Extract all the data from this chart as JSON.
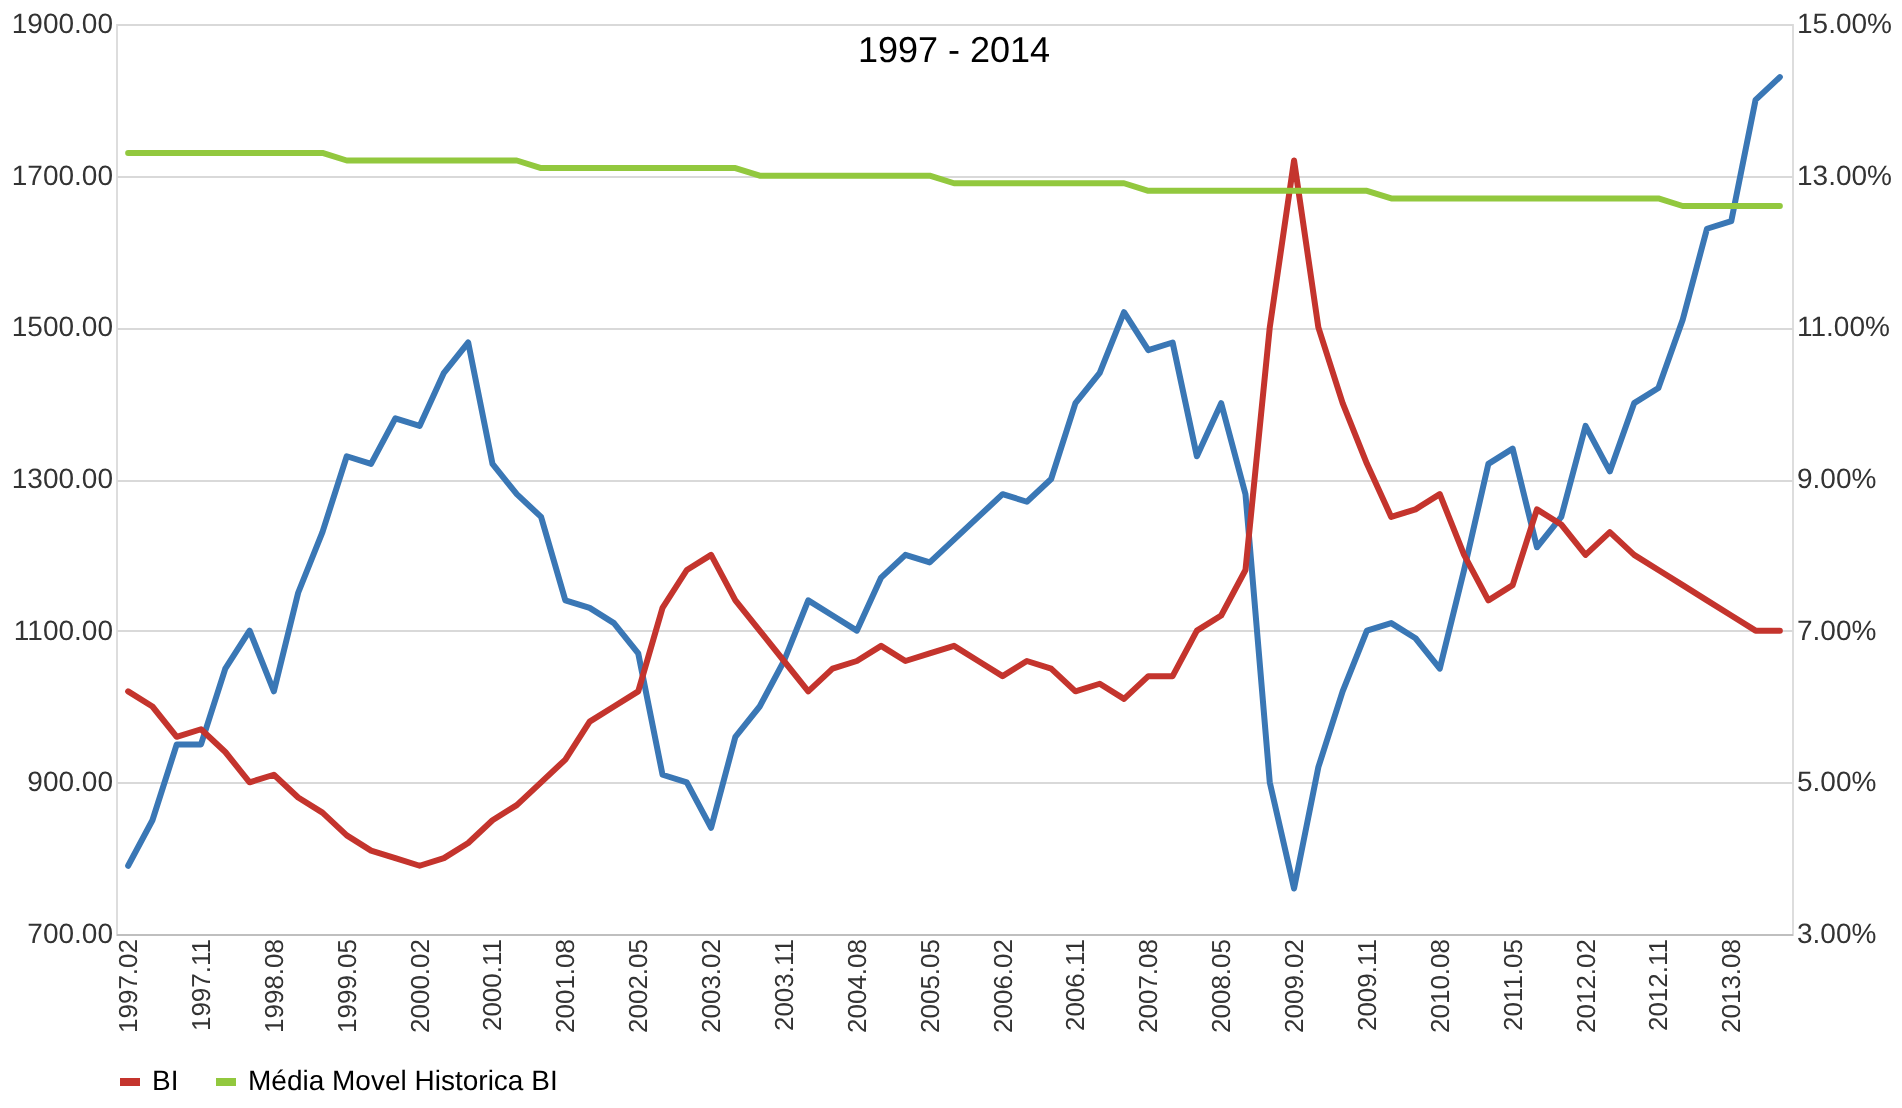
{
  "chart_data": {
    "type": "line",
    "title": "1997 - 2014",
    "categories": [
      "1997.02",
      null,
      null,
      "1997.11",
      null,
      null,
      "1998.08",
      null,
      null,
      "1999.05",
      null,
      null,
      "2000.02",
      null,
      null,
      "2000.11",
      null,
      null,
      "2001.08",
      null,
      null,
      "2002.05",
      null,
      null,
      "2003.02",
      null,
      null,
      "2003.11",
      null,
      null,
      "2004.08",
      null,
      null,
      "2005.05",
      null,
      null,
      "2006.02",
      null,
      null,
      "2006.11",
      null,
      null,
      "2007.08",
      null,
      null,
      "2008.05",
      null,
      null,
      "2009.02",
      null,
      null,
      "2009.11",
      null,
      null,
      "2010.08",
      null,
      null,
      "2011.05",
      null,
      null,
      "2012.02",
      null,
      null,
      "2012.11",
      null,
      null,
      "2013.08",
      null,
      null
    ],
    "series": [
      {
        "color": "#3a77b5",
        "values": [
          790,
          850,
          950,
          950,
          1050,
          1100,
          1020,
          1150,
          1230,
          1330,
          1320,
          1380,
          1370,
          1440,
          1480,
          1320,
          1280,
          1250,
          1140,
          1130,
          1110,
          1070,
          910,
          900,
          840,
          960,
          1000,
          1060,
          1140,
          1120,
          1100,
          1170,
          1200,
          1190,
          1220,
          1250,
          1280,
          1270,
          1300,
          1400,
          1440,
          1520,
          1470,
          1480,
          1330,
          1400,
          1280,
          900,
          760,
          920,
          1020,
          1100,
          1110,
          1090,
          1050,
          1180,
          1320,
          1340,
          1210,
          1250,
          1370,
          1310,
          1400,
          1420,
          1510,
          1630,
          1640,
          1800,
          1830
        ]
      },
      {
        "name": "BI",
        "color": "#c4342d",
        "axis": "y2",
        "values": [
          6.2,
          6.0,
          5.6,
          5.7,
          5.4,
          5.0,
          5.1,
          4.8,
          4.6,
          4.3,
          4.1,
          4.0,
          3.9,
          4.0,
          4.2,
          4.5,
          4.7,
          5.0,
          5.3,
          5.8,
          6.0,
          6.2,
          7.3,
          7.8,
          8.0,
          7.4,
          7.0,
          6.6,
          6.2,
          6.5,
          6.6,
          6.8,
          6.6,
          6.7,
          6.8,
          6.6,
          6.4,
          6.6,
          6.5,
          6.2,
          6.3,
          6.1,
          6.4,
          6.4,
          7.0,
          7.2,
          7.8,
          11.0,
          13.2,
          11.0,
          10.0,
          9.2,
          8.5,
          8.6,
          8.8,
          8.0,
          7.4,
          7.6,
          8.6,
          8.4,
          8.0,
          8.3,
          8.0,
          7.8,
          7.6,
          7.4,
          7.2,
          7.0,
          7.0
        ]
      },
      {
        "name": "Média Movel Historica BI",
        "color": "#92c83e",
        "axis": "y2",
        "values": [
          13.3,
          13.3,
          13.3,
          13.3,
          13.3,
          13.3,
          13.3,
          13.3,
          13.3,
          13.2,
          13.2,
          13.2,
          13.2,
          13.2,
          13.2,
          13.2,
          13.2,
          13.1,
          13.1,
          13.1,
          13.1,
          13.1,
          13.1,
          13.1,
          13.1,
          13.1,
          13.0,
          13.0,
          13.0,
          13.0,
          13.0,
          13.0,
          13.0,
          13.0,
          12.9,
          12.9,
          12.9,
          12.9,
          12.9,
          12.9,
          12.9,
          12.9,
          12.8,
          12.8,
          12.8,
          12.8,
          12.8,
          12.8,
          12.8,
          12.8,
          12.8,
          12.8,
          12.7,
          12.7,
          12.7,
          12.7,
          12.7,
          12.7,
          12.7,
          12.7,
          12.7,
          12.7,
          12.7,
          12.7,
          12.6,
          12.6,
          12.6,
          12.6,
          12.6
        ]
      }
    ],
    "ylim": [
      700,
      1900
    ],
    "yticks": [
      {
        "value": 700,
        "label": "700.00"
      },
      {
        "value": 900,
        "label": "900.00"
      },
      {
        "value": 1100,
        "label": "1100.00"
      },
      {
        "value": 1300,
        "label": "1300.00"
      },
      {
        "value": 1500,
        "label": "1500.00"
      },
      {
        "value": 1700,
        "label": "1700.00"
      },
      {
        "value": 1900,
        "label": "1900.00"
      }
    ],
    "y2lim": [
      3,
      15
    ],
    "y2ticks": [
      {
        "value": 3,
        "label": "3.00%"
      },
      {
        "value": 5,
        "label": "5.00%"
      },
      {
        "value": 7,
        "label": "7.00%"
      },
      {
        "value": 9,
        "label": "9.00%"
      },
      {
        "value": 11,
        "label": "11.00%"
      },
      {
        "value": 13,
        "label": "13.00%"
      },
      {
        "value": 15,
        "label": "15.00%"
      }
    ],
    "grid": "y",
    "legend": "bottom"
  }
}
